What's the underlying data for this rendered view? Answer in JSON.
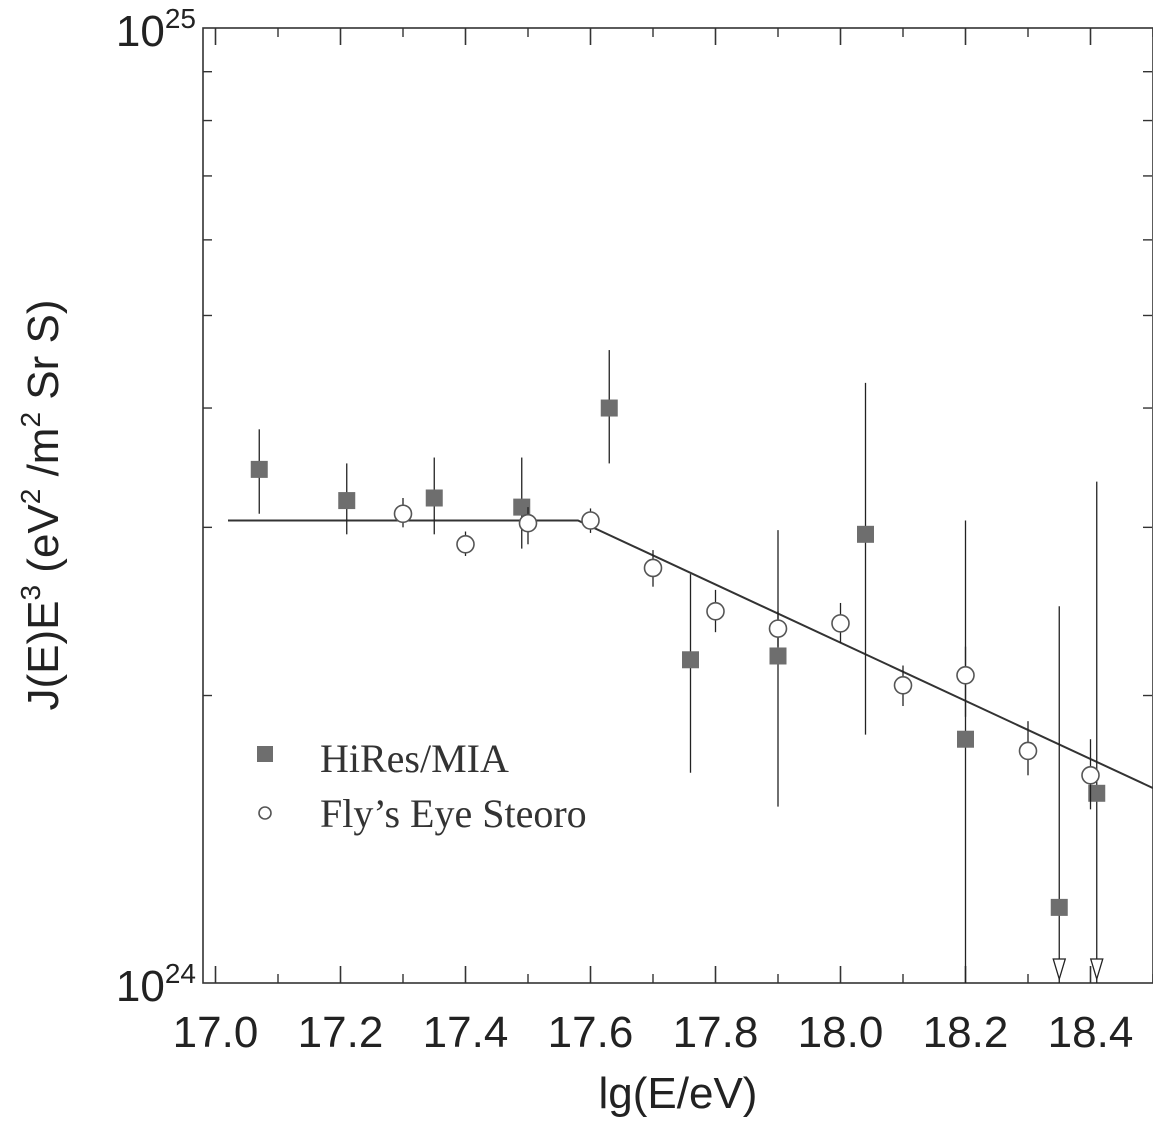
{
  "chart_data": {
    "type": "scatter",
    "title": "",
    "xlabel": "lg(E/eV)",
    "ylabel_parts": [
      "J(E)E",
      "3",
      " (eV",
      "2",
      " /m",
      "2",
      " Sr S)"
    ],
    "xlim": [
      16.98,
      18.5
    ],
    "ylim": [
      1e+24,
      1e+25
    ],
    "y_scale": "log",
    "x_ticks": [
      {
        "value": 17.0,
        "label": "17.0"
      },
      {
        "value": 17.2,
        "label": "17.2"
      },
      {
        "value": 17.4,
        "label": "17.4"
      },
      {
        "value": 17.6,
        "label": "17.6"
      },
      {
        "value": 17.8,
        "label": "17.8"
      },
      {
        "value": 18.0,
        "label": "18.0"
      },
      {
        "value": 18.2,
        "label": "18.2"
      },
      {
        "value": 18.4,
        "label": "18.4"
      }
    ],
    "y_ticks": [
      {
        "value": 1e+25,
        "base": "10",
        "exp": "25"
      },
      {
        "value": 1e+24,
        "base": "10",
        "exp": "24"
      }
    ],
    "legend_position": "lower-left",
    "series": [
      {
        "name": "HiRes/MIA",
        "marker": "filled-square",
        "color": "#6e6e6e",
        "points": [
          {
            "x": 17.07,
            "y": 3.45e+24,
            "y_low": 3.1e+24,
            "y_high": 3.8e+24
          },
          {
            "x": 17.21,
            "y": 3.2e+24,
            "y_low": 2.95e+24,
            "y_high": 3.5e+24
          },
          {
            "x": 17.35,
            "y": 3.22e+24,
            "y_low": 2.95e+24,
            "y_high": 3.55e+24
          },
          {
            "x": 17.49,
            "y": 3.15e+24,
            "y_low": 2.85e+24,
            "y_high": 3.55e+24
          },
          {
            "x": 17.63,
            "y": 4e+24,
            "y_low": 3.5e+24,
            "y_high": 4.6e+24
          },
          {
            "x": 17.76,
            "y": 2.18e+24,
            "y_low": 1.66e+24,
            "y_high": 2.68e+24
          },
          {
            "x": 17.9,
            "y": 2.2e+24,
            "y_low": 1.53e+24,
            "y_high": 2.98e+24
          },
          {
            "x": 18.04,
            "y": 2.95e+24,
            "y_low": 1.82e+24,
            "y_high": 4.25e+24
          },
          {
            "x": 18.2,
            "y": 1.8e+24,
            "y_low": 1e+24,
            "y_high": 3.05e+24
          },
          {
            "x": 18.35,
            "y": 1.2e+24,
            "y_low": 1e+24,
            "y_high": 2.48e+24,
            "upper_limit": true
          },
          {
            "x": 18.41,
            "y": 1.58e+24,
            "y_low": 1e+24,
            "y_high": 3.35e+24,
            "upper_limit": true
          }
        ]
      },
      {
        "name": "Fly’s Eye Steoro",
        "marker": "open-circle",
        "color": "#555555",
        "points": [
          {
            "x": 17.3,
            "y": 3.1e+24,
            "y_low": 3e+24,
            "y_high": 3.22e+24
          },
          {
            "x": 17.4,
            "y": 2.88e+24,
            "y_low": 2.8e+24,
            "y_high": 2.97e+24
          },
          {
            "x": 17.5,
            "y": 3.03e+24,
            "y_low": 2.88e+24,
            "y_high": 3.15e+24
          },
          {
            "x": 17.6,
            "y": 3.05e+24,
            "y_low": 2.96e+24,
            "y_high": 3.14e+24
          },
          {
            "x": 17.7,
            "y": 2.72e+24,
            "y_low": 2.6e+24,
            "y_high": 2.84e+24
          },
          {
            "x": 17.8,
            "y": 2.45e+24,
            "y_low": 2.33e+24,
            "y_high": 2.58e+24
          },
          {
            "x": 17.9,
            "y": 2.35e+24,
            "y_low": 2.25e+24,
            "y_high": 2.45e+24
          },
          {
            "x": 18.0,
            "y": 2.38e+24,
            "y_low": 2.27e+24,
            "y_high": 2.5e+24
          },
          {
            "x": 18.1,
            "y": 2.05e+24,
            "y_low": 1.95e+24,
            "y_high": 2.15e+24
          },
          {
            "x": 18.2,
            "y": 2.1e+24,
            "y_low": 1.9e+24,
            "y_high": 2.25e+24
          },
          {
            "x": 18.3,
            "y": 1.75e+24,
            "y_low": 1.65e+24,
            "y_high": 1.88e+24
          },
          {
            "x": 18.4,
            "y": 1.65e+24,
            "y_low": 1.52e+24,
            "y_high": 1.8e+24
          }
        ]
      }
    ],
    "fit_line": [
      {
        "x": 17.02,
        "y": 3.05e+24
      },
      {
        "x": 17.58,
        "y": 3.05e+24
      },
      {
        "x": 18.5,
        "y": 1.6e+24
      }
    ]
  }
}
